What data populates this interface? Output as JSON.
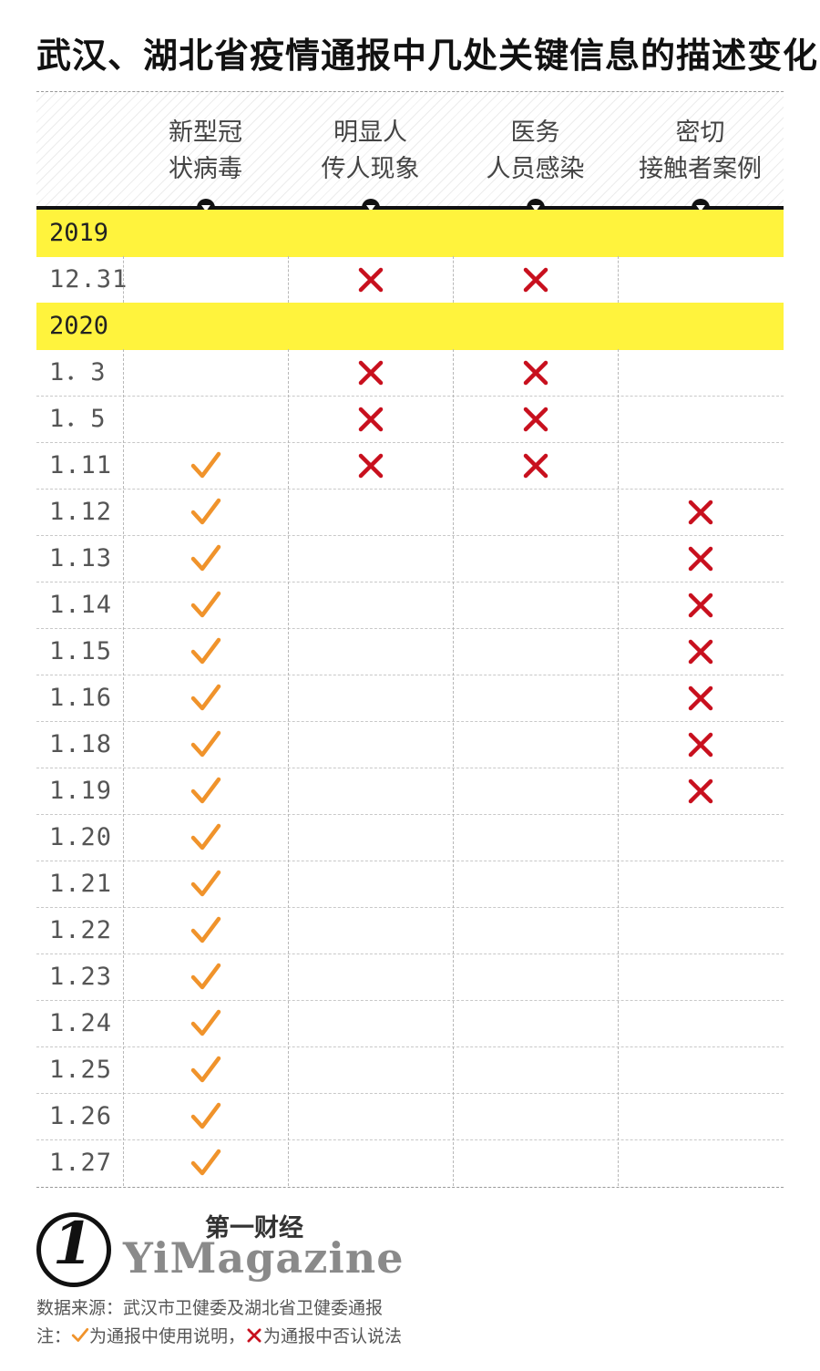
{
  "title": "武汉、湖北省疫情通报中几处关键信息的描述变化",
  "colors": {
    "check": "#f0932b",
    "cross": "#c8101e",
    "band": "#fff33d"
  },
  "columns": [
    {
      "line1": "新型冠",
      "line2": "状病毒"
    },
    {
      "line1": "明显人",
      "line2": "传人现象"
    },
    {
      "line1": "医务",
      "line2": "人员感染"
    },
    {
      "line1": "密切",
      "line2": "接触者案例"
    }
  ],
  "chart_data": {
    "type": "table",
    "legend": {
      "check": "为通报中使用说明",
      "cross": "为通报中否认说法"
    },
    "years": [
      {
        "year": "2019",
        "rows": [
          {
            "date": "12.31",
            "marks": [
              "",
              "x",
              "x",
              ""
            ]
          }
        ]
      },
      {
        "year": "2020",
        "rows": [
          {
            "date": "1．3",
            "marks": [
              "",
              "x",
              "x",
              ""
            ]
          },
          {
            "date": "1．5",
            "marks": [
              "",
              "x",
              "x",
              ""
            ]
          },
          {
            "date": "1.11",
            "marks": [
              "v",
              "x",
              "x",
              ""
            ]
          },
          {
            "date": "1.12",
            "marks": [
              "v",
              "",
              "",
              "x"
            ]
          },
          {
            "date": "1.13",
            "marks": [
              "v",
              "",
              "",
              "x"
            ]
          },
          {
            "date": "1.14",
            "marks": [
              "v",
              "",
              "",
              "x"
            ]
          },
          {
            "date": "1.15",
            "marks": [
              "v",
              "",
              "",
              "x"
            ]
          },
          {
            "date": "1.16",
            "marks": [
              "v",
              "",
              "",
              "x"
            ]
          },
          {
            "date": "1.18",
            "marks": [
              "v",
              "",
              "",
              "x"
            ]
          },
          {
            "date": "1.19",
            "marks": [
              "v",
              "",
              "",
              "x"
            ]
          },
          {
            "date": "1.20",
            "marks": [
              "v",
              "",
              "",
              ""
            ]
          },
          {
            "date": "1.21",
            "marks": [
              "v",
              "",
              "",
              ""
            ]
          },
          {
            "date": "1.22",
            "marks": [
              "v",
              "",
              "",
              ""
            ]
          },
          {
            "date": "1.23",
            "marks": [
              "v",
              "",
              "",
              ""
            ]
          },
          {
            "date": "1.24",
            "marks": [
              "v",
              "",
              "",
              ""
            ]
          },
          {
            "date": "1.25",
            "marks": [
              "v",
              "",
              "",
              ""
            ]
          },
          {
            "date": "1.26",
            "marks": [
              "v",
              "",
              "",
              ""
            ]
          },
          {
            "date": "1.27",
            "marks": [
              "v",
              "",
              "",
              ""
            ]
          }
        ]
      }
    ]
  },
  "logo": {
    "cn": "第一财经",
    "en": "YiMagazine",
    "numeral": "1"
  },
  "source": "数据来源：武汉市卫健委及湖北省卫健委通报",
  "note": {
    "prefix": "注：",
    "check_text": "为通报中使用说明，",
    "cross_text": "为通报中否认说法"
  }
}
